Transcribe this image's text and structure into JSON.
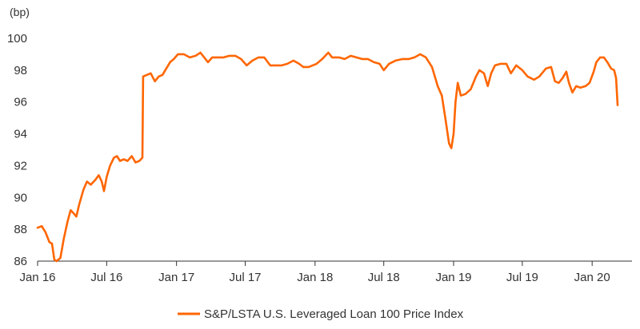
{
  "chart_data": {
    "type": "line",
    "title": "",
    "unit_label": "(bp)",
    "xlabel": "",
    "ylabel": "",
    "ylim": [
      86,
      100
    ],
    "yticks": [
      86,
      88,
      90,
      92,
      94,
      96,
      98,
      100
    ],
    "xlim": [
      "2016-01-01",
      "2020-04-15"
    ],
    "xticks": [
      {
        "date": "2016-01-01",
        "label": "Jan 16"
      },
      {
        "date": "2016-07-01",
        "label": "Jul 16"
      },
      {
        "date": "2017-01-01",
        "label": "Jan 17"
      },
      {
        "date": "2017-07-01",
        "label": "Jul 17"
      },
      {
        "date": "2018-01-01",
        "label": "Jan 18"
      },
      {
        "date": "2018-07-01",
        "label": "Jul 18"
      },
      {
        "date": "2019-01-01",
        "label": "Jan 19"
      },
      {
        "date": "2019-07-01",
        "label": "Jul 19"
      },
      {
        "date": "2020-01-01",
        "label": "Jan 20"
      }
    ],
    "grid": false,
    "legend": "bottom-center",
    "series": [
      {
        "name": "S&P/LSTA U.S. Leveraged Loan 100 Price Index",
        "color": "#ff6600",
        "points": [
          [
            "2016-01-01",
            88.1
          ],
          [
            "2016-01-12",
            88.2
          ],
          [
            "2016-01-22",
            87.8
          ],
          [
            "2016-02-01",
            87.2
          ],
          [
            "2016-02-08",
            87.1
          ],
          [
            "2016-02-14",
            86.1
          ],
          [
            "2016-02-20",
            86.0
          ],
          [
            "2016-03-01",
            86.2
          ],
          [
            "2016-03-10",
            87.4
          ],
          [
            "2016-03-20",
            88.5
          ],
          [
            "2016-03-28",
            89.2
          ],
          [
            "2016-04-05",
            89.0
          ],
          [
            "2016-04-12",
            88.8
          ],
          [
            "2016-04-20",
            89.6
          ],
          [
            "2016-05-01",
            90.5
          ],
          [
            "2016-05-10",
            91.0
          ],
          [
            "2016-05-20",
            90.8
          ],
          [
            "2016-06-01",
            91.1
          ],
          [
            "2016-06-10",
            91.4
          ],
          [
            "2016-06-18",
            91.0
          ],
          [
            "2016-06-24",
            90.4
          ],
          [
            "2016-07-01",
            91.3
          ],
          [
            "2016-07-10",
            92.0
          ],
          [
            "2016-07-20",
            92.5
          ],
          [
            "2016-07-28",
            92.6
          ],
          [
            "2016-08-05",
            92.3
          ],
          [
            "2016-08-15",
            92.4
          ],
          [
            "2016-08-25",
            92.3
          ],
          [
            "2016-09-05",
            92.6
          ],
          [
            "2016-09-15",
            92.2
          ],
          [
            "2016-09-25",
            92.3
          ],
          [
            "2016-10-03",
            92.5
          ],
          [
            "2016-10-05",
            97.6
          ],
          [
            "2016-10-15",
            97.7
          ],
          [
            "2016-10-25",
            97.8
          ],
          [
            "2016-11-05",
            97.3
          ],
          [
            "2016-11-15",
            97.6
          ],
          [
            "2016-11-25",
            97.7
          ],
          [
            "2016-12-05",
            98.1
          ],
          [
            "2016-12-15",
            98.5
          ],
          [
            "2016-12-25",
            98.7
          ],
          [
            "2017-01-05",
            99.0
          ],
          [
            "2017-01-20",
            99.0
          ],
          [
            "2017-02-05",
            98.8
          ],
          [
            "2017-02-20",
            98.9
          ],
          [
            "2017-03-05",
            99.1
          ],
          [
            "2017-03-15",
            98.8
          ],
          [
            "2017-03-25",
            98.5
          ],
          [
            "2017-04-05",
            98.8
          ],
          [
            "2017-04-20",
            98.8
          ],
          [
            "2017-05-05",
            98.8
          ],
          [
            "2017-05-20",
            98.9
          ],
          [
            "2017-06-05",
            98.9
          ],
          [
            "2017-06-20",
            98.7
          ],
          [
            "2017-07-05",
            98.3
          ],
          [
            "2017-07-20",
            98.6
          ],
          [
            "2017-08-05",
            98.8
          ],
          [
            "2017-08-20",
            98.8
          ],
          [
            "2017-09-05",
            98.3
          ],
          [
            "2017-09-20",
            98.3
          ],
          [
            "2017-10-05",
            98.3
          ],
          [
            "2017-10-20",
            98.4
          ],
          [
            "2017-11-05",
            98.6
          ],
          [
            "2017-11-20",
            98.4
          ],
          [
            "2017-12-01",
            98.2
          ],
          [
            "2017-12-15",
            98.2
          ],
          [
            "2018-01-05",
            98.4
          ],
          [
            "2018-01-20",
            98.7
          ],
          [
            "2018-02-05",
            99.1
          ],
          [
            "2018-02-15",
            98.8
          ],
          [
            "2018-03-05",
            98.8
          ],
          [
            "2018-03-20",
            98.7
          ],
          [
            "2018-04-05",
            98.9
          ],
          [
            "2018-04-20",
            98.8
          ],
          [
            "2018-05-05",
            98.7
          ],
          [
            "2018-05-20",
            98.7
          ],
          [
            "2018-06-05",
            98.5
          ],
          [
            "2018-06-20",
            98.4
          ],
          [
            "2018-07-01",
            98.0
          ],
          [
            "2018-07-15",
            98.4
          ],
          [
            "2018-08-01",
            98.6
          ],
          [
            "2018-08-20",
            98.7
          ],
          [
            "2018-09-05",
            98.7
          ],
          [
            "2018-09-20",
            98.8
          ],
          [
            "2018-10-05",
            99.0
          ],
          [
            "2018-10-20",
            98.8
          ],
          [
            "2018-11-05",
            98.2
          ],
          [
            "2018-11-20",
            97.0
          ],
          [
            "2018-12-01",
            96.4
          ],
          [
            "2018-12-10",
            95.0
          ],
          [
            "2018-12-20",
            93.4
          ],
          [
            "2018-12-26",
            93.1
          ],
          [
            "2019-01-01",
            94.0
          ],
          [
            "2019-01-06",
            96.0
          ],
          [
            "2019-01-12",
            97.2
          ],
          [
            "2019-01-20",
            96.4
          ],
          [
            "2019-02-01",
            96.5
          ],
          [
            "2019-02-15",
            96.8
          ],
          [
            "2019-03-01",
            97.6
          ],
          [
            "2019-03-10",
            98.0
          ],
          [
            "2019-03-22",
            97.8
          ],
          [
            "2019-04-01",
            97.0
          ],
          [
            "2019-04-10",
            97.8
          ],
          [
            "2019-04-20",
            98.3
          ],
          [
            "2019-05-05",
            98.4
          ],
          [
            "2019-05-20",
            98.4
          ],
          [
            "2019-06-01",
            97.8
          ],
          [
            "2019-06-15",
            98.3
          ],
          [
            "2019-07-01",
            98.0
          ],
          [
            "2019-07-15",
            97.6
          ],
          [
            "2019-08-01",
            97.4
          ],
          [
            "2019-08-15",
            97.6
          ],
          [
            "2019-09-01",
            98.1
          ],
          [
            "2019-09-15",
            98.2
          ],
          [
            "2019-09-25",
            97.3
          ],
          [
            "2019-10-05",
            97.2
          ],
          [
            "2019-10-15",
            97.5
          ],
          [
            "2019-10-25",
            97.9
          ],
          [
            "2019-11-01",
            97.2
          ],
          [
            "2019-11-10",
            96.6
          ],
          [
            "2019-11-20",
            97.0
          ],
          [
            "2019-12-01",
            96.9
          ],
          [
            "2019-12-15",
            97.0
          ],
          [
            "2019-12-25",
            97.2
          ],
          [
            "2020-01-05",
            97.9
          ],
          [
            "2020-01-12",
            98.5
          ],
          [
            "2020-01-22",
            98.8
          ],
          [
            "2020-02-01",
            98.8
          ],
          [
            "2020-02-10",
            98.5
          ],
          [
            "2020-02-20",
            98.1
          ],
          [
            "2020-02-28",
            98.0
          ],
          [
            "2020-03-04",
            97.5
          ],
          [
            "2020-03-08",
            95.8
          ]
        ]
      }
    ]
  }
}
